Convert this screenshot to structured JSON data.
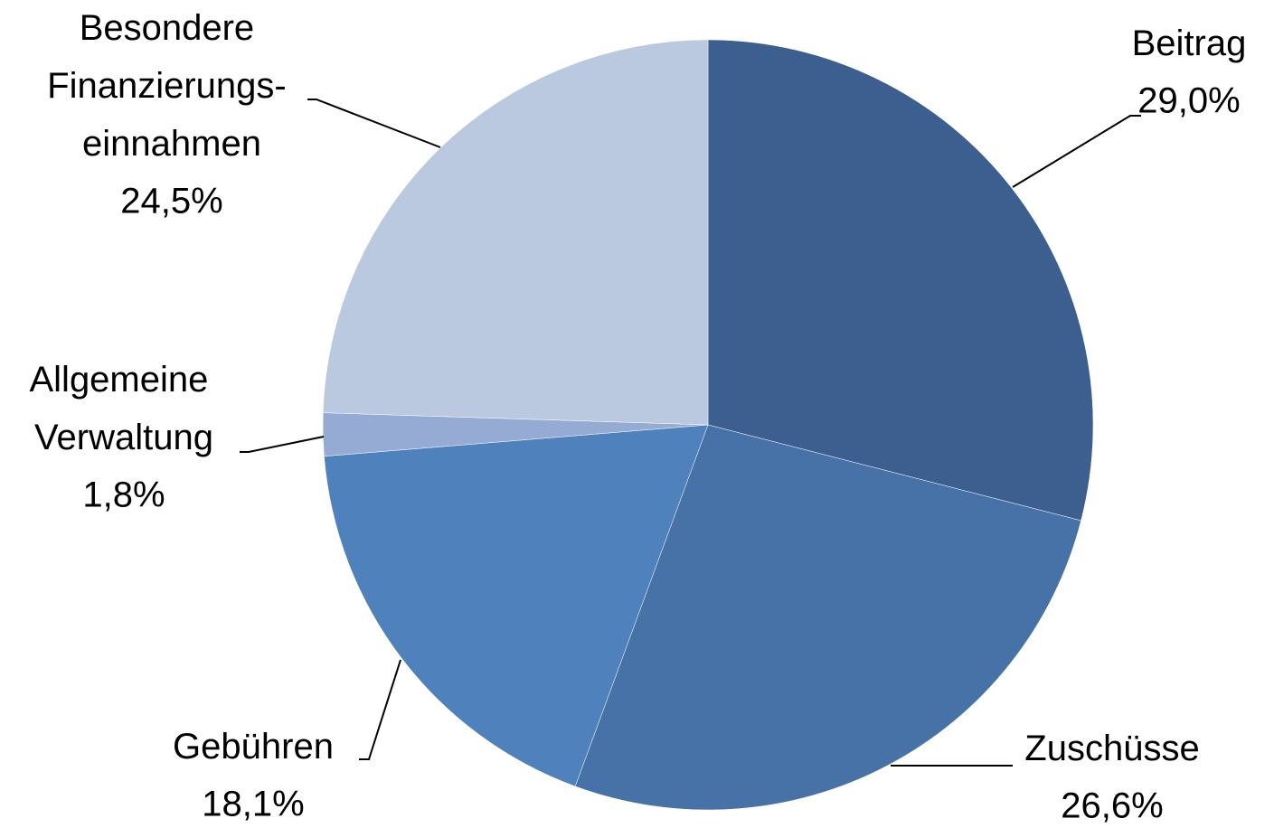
{
  "chart_data": {
    "type": "pie",
    "categories": [
      "Beitrag",
      "Zuschüsse",
      "Gebühren",
      "Allgemeine\nVerwaltung",
      "Besondere\nFinanzierungs-\neinnahmen"
    ],
    "values": [
      29.0,
      26.6,
      18.1,
      1.8,
      24.5
    ],
    "value_labels": [
      "29,0%",
      "26,6%",
      "18,1%",
      "1,8%",
      "24,5%"
    ],
    "colors": [
      "#3c5f8f",
      "#4672a8",
      "#4f81bd",
      "#95abd3",
      "#bac8e0"
    ]
  }
}
